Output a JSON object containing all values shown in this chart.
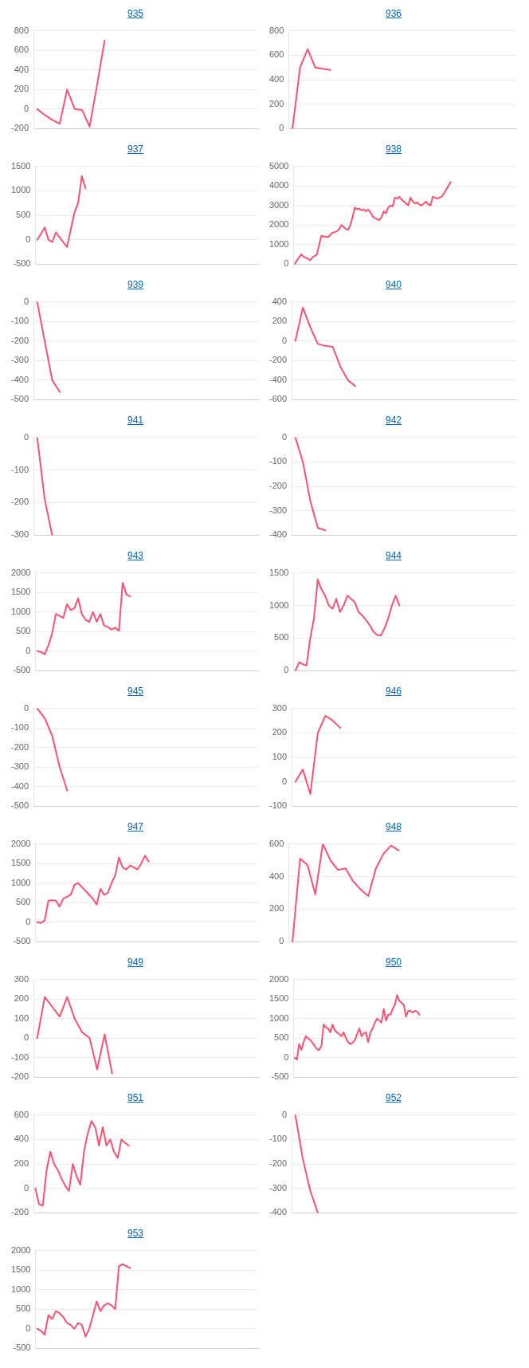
{
  "chart_data": [
    {
      "type": "line",
      "title": "935",
      "color": "#ff5271",
      "grid": "y",
      "marker": "none",
      "line_style": "solid",
      "tick_labels": "y",
      "ylim": [
        -200,
        800
      ],
      "yticks": [
        -200,
        0,
        200,
        400,
        600,
        800
      ],
      "categories": [
        null,
        null,
        null,
        null,
        null,
        null,
        null,
        null,
        null,
        null,
        null,
        null,
        null,
        null,
        null,
        null,
        null,
        null,
        null,
        null,
        null,
        null,
        null,
        null,
        null,
        null,
        null,
        null,
        null,
        null
      ],
      "values": [
        0,
        -60,
        -110,
        -150,
        200,
        0,
        -10,
        -180,
        250,
        700,
        null,
        null,
        null,
        null,
        null,
        null,
        null,
        null,
        null,
        null,
        null,
        null,
        null,
        null,
        null,
        null,
        null,
        null,
        null,
        null
      ]
    },
    {
      "type": "line",
      "title": "936",
      "color": "#ff5271",
      "grid": "y",
      "marker": "none",
      "line_style": "solid",
      "tick_labels": "y",
      "ylim": [
        0,
        800
      ],
      "yticks": [
        0,
        200,
        400,
        600,
        800
      ],
      "categories": [
        null,
        null,
        null,
        null,
        null,
        null,
        null,
        null,
        null,
        null,
        null,
        null,
        null,
        null,
        null,
        null,
        null,
        null,
        null,
        null,
        null,
        null,
        null,
        null,
        null,
        null,
        null,
        null,
        null,
        null
      ],
      "values": [
        0,
        500,
        650,
        500,
        490,
        480,
        null,
        null,
        null,
        null,
        null,
        null,
        null,
        null,
        null,
        null,
        null,
        null,
        null,
        null,
        null,
        null,
        null,
        null,
        null,
        null,
        null,
        null,
        null,
        null
      ]
    },
    {
      "type": "line",
      "title": "937",
      "color": "#ff5271",
      "grid": "y",
      "marker": "none",
      "line_style": "solid",
      "tick_labels": "y",
      "ylim": [
        -500,
        1500
      ],
      "yticks": [
        -500,
        0,
        500,
        1000,
        1500
      ],
      "categories": [
        null,
        null,
        null,
        null,
        null,
        null,
        null,
        null,
        null,
        null,
        null,
        null,
        null,
        null,
        null,
        null,
        null,
        null,
        null,
        null,
        null,
        null,
        null,
        null,
        null,
        null,
        null,
        null,
        null,
        null,
        null,
        null,
        null,
        null,
        null,
        null,
        null,
        null,
        null,
        null,
        null,
        null,
        null,
        null,
        null,
        null,
        null,
        null,
        null,
        null,
        null,
        null,
        null,
        null,
        null,
        null,
        null,
        null,
        null,
        null
      ],
      "values": [
        0,
        120,
        250,
        0,
        -50,
        150,
        50,
        -50,
        -150,
        200,
        550,
        750,
        1300,
        1050,
        null,
        null,
        null,
        null,
        null,
        null,
        null,
        null,
        null,
        null,
        null,
        null,
        null,
        null,
        null,
        null,
        null,
        null,
        null,
        null,
        null,
        null,
        null,
        null,
        null,
        null,
        null,
        null,
        null,
        null,
        null,
        null,
        null,
        null,
        null,
        null,
        null,
        null,
        null,
        null,
        null,
        null,
        null,
        null,
        null,
        null
      ]
    },
    {
      "type": "line",
      "title": "938",
      "color": "#ff5271",
      "grid": "y",
      "marker": "none",
      "line_style": "solid",
      "tick_labels": "y",
      "ylim": [
        0,
        5000
      ],
      "yticks": [
        0,
        1000,
        2000,
        3000,
        4000,
        5000
      ],
      "categories": [
        null,
        null,
        null,
        null,
        null,
        null,
        null,
        null,
        null,
        null,
        null,
        null,
        null,
        null,
        null,
        null,
        null,
        null,
        null,
        null,
        null,
        null,
        null,
        null,
        null,
        null,
        null,
        null,
        null,
        null,
        null,
        null,
        null,
        null,
        null,
        null,
        null,
        null,
        null,
        null,
        null,
        null,
        null,
        null,
        null,
        null,
        null,
        null,
        null,
        null,
        null,
        null,
        null,
        null,
        null,
        null,
        null,
        null,
        null,
        null,
        null,
        null,
        null,
        null,
        null,
        null,
        null,
        null,
        null,
        null,
        null,
        null,
        null,
        null,
        null,
        null,
        null,
        null,
        null,
        null,
        null,
        null,
        null,
        null,
        null,
        null,
        null,
        null,
        null,
        null,
        null,
        null,
        null,
        null,
        null,
        null,
        null,
        null,
        null,
        null
      ],
      "values": [
        0,
        200,
        350,
        500,
        380,
        330,
        280,
        200,
        350,
        420,
        500,
        1000,
        1450,
        1420,
        1400,
        1380,
        1500,
        1600,
        1650,
        1680,
        1800,
        2000,
        1900,
        1800,
        1750,
        2000,
        2400,
        2900,
        2800,
        2850,
        2750,
        2800,
        2700,
        2800,
        2650,
        2450,
        2350,
        2300,
        2250,
        2400,
        2700,
        2600,
        2900,
        3000,
        2950,
        3400,
        3350,
        3450,
        3300,
        3200,
        3100,
        3000,
        3400,
        3200,
        3100,
        3150,
        3050,
        3000,
        3100,
        3200,
        3050,
        3000,
        3450,
        3400,
        3350,
        3400,
        3450,
        3600,
        3800,
        4000,
        4200,
        null,
        null,
        null,
        null,
        null,
        null,
        null,
        null,
        null,
        null,
        null,
        null,
        null,
        null,
        null,
        null,
        null,
        null,
        null,
        null,
        null,
        null,
        null,
        null,
        null,
        null,
        null,
        null,
        null
      ]
    },
    {
      "type": "line",
      "title": "939",
      "color": "#ff5271",
      "grid": "y",
      "marker": "none",
      "line_style": "solid",
      "tick_labels": "y",
      "ylim": [
        -500,
        0
      ],
      "yticks": [
        -500,
        -400,
        -300,
        -200,
        -100,
        0
      ],
      "categories": [
        null,
        null,
        null,
        null,
        null,
        null,
        null,
        null,
        null,
        null,
        null,
        null,
        null,
        null,
        null,
        null,
        null,
        null,
        null,
        null,
        null,
        null,
        null,
        null,
        null,
        null,
        null,
        null,
        null,
        null
      ],
      "values": [
        0,
        -200,
        -400,
        -460,
        null,
        null,
        null,
        null,
        null,
        null,
        null,
        null,
        null,
        null,
        null,
        null,
        null,
        null,
        null,
        null,
        null,
        null,
        null,
        null,
        null,
        null,
        null,
        null,
        null,
        null
      ]
    },
    {
      "type": "line",
      "title": "940",
      "color": "#ff5271",
      "grid": "y",
      "marker": "none",
      "line_style": "solid",
      "tick_labels": "y",
      "ylim": [
        -600,
        400
      ],
      "yticks": [
        -600,
        -400,
        -200,
        0,
        200,
        400
      ],
      "categories": [
        null,
        null,
        null,
        null,
        null,
        null,
        null,
        null,
        null,
        null,
        null,
        null,
        null,
        null,
        null,
        null,
        null,
        null,
        null,
        null,
        null,
        null,
        null,
        null,
        null,
        null,
        null,
        null,
        null,
        null
      ],
      "values": [
        0,
        340,
        140,
        -30,
        -50,
        -60,
        -260,
        -400,
        -460,
        null,
        null,
        null,
        null,
        null,
        null,
        null,
        null,
        null,
        null,
        null,
        null,
        null,
        null,
        null,
        null,
        null,
        null,
        null,
        null,
        null
      ]
    },
    {
      "type": "line",
      "title": "941",
      "color": "#ff5271",
      "grid": "y",
      "marker": "none",
      "line_style": "solid",
      "tick_labels": "y",
      "ylim": [
        -300,
        0
      ],
      "yticks": [
        -300,
        -200,
        -100,
        0
      ],
      "categories": [
        null,
        null,
        null,
        null,
        null,
        null,
        null,
        null,
        null,
        null,
        null,
        null,
        null,
        null,
        null,
        null,
        null,
        null,
        null,
        null,
        null,
        null,
        null,
        null,
        null,
        null,
        null,
        null,
        null,
        null
      ],
      "values": [
        0,
        -190,
        -300,
        null,
        null,
        null,
        null,
        null,
        null,
        null,
        null,
        null,
        null,
        null,
        null,
        null,
        null,
        null,
        null,
        null,
        null,
        null,
        null,
        null,
        null,
        null,
        null,
        null,
        null,
        null
      ]
    },
    {
      "type": "line",
      "title": "942",
      "color": "#ff5271",
      "grid": "y",
      "marker": "none",
      "line_style": "solid",
      "tick_labels": "y",
      "ylim": [
        -400,
        0
      ],
      "yticks": [
        -400,
        -300,
        -200,
        -100,
        0
      ],
      "categories": [
        null,
        null,
        null,
        null,
        null,
        null,
        null,
        null,
        null,
        null,
        null,
        null,
        null,
        null,
        null,
        null,
        null,
        null,
        null,
        null,
        null,
        null,
        null,
        null,
        null,
        null,
        null,
        null,
        null,
        null
      ],
      "values": [
        0,
        -100,
        -260,
        -370,
        -380,
        null,
        null,
        null,
        null,
        null,
        null,
        null,
        null,
        null,
        null,
        null,
        null,
        null,
        null,
        null,
        null,
        null,
        null,
        null,
        null,
        null,
        null,
        null,
        null,
        null
      ]
    },
    {
      "type": "line",
      "title": "943",
      "color": "#ff5271",
      "grid": "y",
      "marker": "none",
      "line_style": "solid",
      "tick_labels": "y",
      "ylim": [
        -500,
        2000
      ],
      "yticks": [
        -500,
        0,
        500,
        1000,
        1500,
        2000
      ],
      "categories": [
        null,
        null,
        null,
        null,
        null,
        null,
        null,
        null,
        null,
        null,
        null,
        null,
        null,
        null,
        null,
        null,
        null,
        null,
        null,
        null,
        null,
        null,
        null,
        null,
        null,
        null,
        null,
        null,
        null,
        null,
        null,
        null,
        null,
        null,
        null,
        null,
        null,
        null,
        null,
        null,
        null,
        null,
        null,
        null,
        null,
        null,
        null,
        null,
        null,
        null,
        null,
        null,
        null,
        null,
        null,
        null,
        null,
        null,
        null,
        null
      ],
      "values": [
        0,
        -20,
        -80,
        150,
        450,
        950,
        900,
        850,
        1200,
        1050,
        1100,
        1350,
        950,
        800,
        750,
        1000,
        750,
        950,
        650,
        620,
        550,
        600,
        520,
        1750,
        1450,
        1400,
        null,
        null,
        null,
        null,
        null,
        null,
        null,
        null,
        null,
        null,
        null,
        null,
        null,
        null,
        null,
        null,
        null,
        null,
        null,
        null,
        null,
        null,
        null,
        null,
        null,
        null,
        null,
        null,
        null,
        null,
        null,
        null,
        null,
        null
      ]
    },
    {
      "type": "line",
      "title": "944",
      "color": "#ff5271",
      "grid": "y",
      "marker": "none",
      "line_style": "solid",
      "tick_labels": "y",
      "ylim": [
        0,
        1500
      ],
      "yticks": [
        0,
        500,
        1000,
        1500
      ],
      "categories": [
        null,
        null,
        null,
        null,
        null,
        null,
        null,
        null,
        null,
        null,
        null,
        null,
        null,
        null,
        null,
        null,
        null,
        null,
        null,
        null,
        null,
        null,
        null,
        null,
        null,
        null,
        null,
        null,
        null,
        null,
        null,
        null,
        null,
        null,
        null,
        null,
        null,
        null,
        null,
        null,
        null,
        null,
        null,
        null,
        null,
        null,
        null,
        null,
        null,
        null,
        null,
        null,
        null,
        null,
        null,
        null,
        null,
        null,
        null,
        null
      ],
      "values": [
        0,
        130,
        100,
        80,
        500,
        800,
        1400,
        1250,
        1150,
        1000,
        950,
        1100,
        900,
        1000,
        1150,
        1100,
        1050,
        900,
        850,
        780,
        700,
        600,
        550,
        540,
        650,
        800,
        1000,
        1150,
        1000,
        null,
        null,
        null,
        null,
        null,
        null,
        null,
        null,
        null,
        null,
        null,
        null,
        null,
        null,
        null,
        null,
        null,
        null,
        null,
        null,
        null,
        null,
        null,
        null,
        null,
        null,
        null,
        null,
        null,
        null,
        null
      ]
    },
    {
      "type": "line",
      "title": "945",
      "color": "#ff5271",
      "grid": "y",
      "marker": "none",
      "line_style": "solid",
      "tick_labels": "y",
      "ylim": [
        -500,
        0
      ],
      "yticks": [
        -500,
        -400,
        -300,
        -200,
        -100,
        0
      ],
      "categories": [
        null,
        null,
        null,
        null,
        null,
        null,
        null,
        null,
        null,
        null,
        null,
        null,
        null,
        null,
        null,
        null,
        null,
        null,
        null,
        null,
        null,
        null,
        null,
        null,
        null,
        null,
        null,
        null,
        null,
        null
      ],
      "values": [
        0,
        -50,
        -140,
        -300,
        -420,
        null,
        null,
        null,
        null,
        null,
        null,
        null,
        null,
        null,
        null,
        null,
        null,
        null,
        null,
        null,
        null,
        null,
        null,
        null,
        null,
        null,
        null,
        null,
        null,
        null
      ]
    },
    {
      "type": "line",
      "title": "946",
      "color": "#ff5271",
      "grid": "y",
      "marker": "none",
      "line_style": "solid",
      "tick_labels": "y",
      "ylim": [
        -100,
        300
      ],
      "yticks": [
        -100,
        0,
        100,
        200,
        300
      ],
      "categories": [
        null,
        null,
        null,
        null,
        null,
        null,
        null,
        null,
        null,
        null,
        null,
        null,
        null,
        null,
        null,
        null,
        null,
        null,
        null,
        null,
        null,
        null,
        null,
        null,
        null,
        null,
        null,
        null,
        null,
        null
      ],
      "values": [
        0,
        50,
        -50,
        200,
        270,
        250,
        220,
        null,
        null,
        null,
        null,
        null,
        null,
        null,
        null,
        null,
        null,
        null,
        null,
        null,
        null,
        null,
        null,
        null,
        null,
        null,
        null,
        null,
        null,
        null
      ]
    },
    {
      "type": "line",
      "title": "947",
      "color": "#ff5271",
      "grid": "y",
      "marker": "none",
      "line_style": "solid",
      "tick_labels": "y",
      "ylim": [
        -500,
        2000
      ],
      "yticks": [
        -500,
        0,
        500,
        1000,
        1500,
        2000
      ],
      "categories": [
        null,
        null,
        null,
        null,
        null,
        null,
        null,
        null,
        null,
        null,
        null,
        null,
        null,
        null,
        null,
        null,
        null,
        null,
        null,
        null,
        null,
        null,
        null,
        null,
        null,
        null,
        null,
        null,
        null,
        null,
        null,
        null,
        null,
        null,
        null,
        null,
        null,
        null,
        null,
        null,
        null,
        null,
        null,
        null,
        null,
        null,
        null,
        null,
        null,
        null,
        null,
        null,
        null,
        null,
        null,
        null,
        null,
        null,
        null,
        null
      ],
      "values": [
        0,
        -20,
        50,
        550,
        560,
        550,
        400,
        600,
        650,
        700,
        950,
        1000,
        900,
        800,
        700,
        600,
        450,
        850,
        700,
        750,
        1000,
        1200,
        1650,
        1400,
        1350,
        1450,
        1400,
        1350,
        1500,
        1700,
        1550,
        null,
        null,
        null,
        null,
        null,
        null,
        null,
        null,
        null,
        null,
        null,
        null,
        null,
        null,
        null,
        null,
        null,
        null,
        null,
        null,
        null,
        null,
        null,
        null,
        null,
        null,
        null,
        null,
        null
      ]
    },
    {
      "type": "line",
      "title": "948",
      "color": "#ff5271",
      "grid": "y",
      "marker": "none",
      "line_style": "solid",
      "tick_labels": "y",
      "ylim": [
        0,
        600
      ],
      "yticks": [
        0,
        200,
        400,
        600
      ],
      "categories": [
        null,
        null,
        null,
        null,
        null,
        null,
        null,
        null,
        null,
        null,
        null,
        null,
        null,
        null,
        null,
        null,
        null,
        null,
        null,
        null,
        null,
        null,
        null,
        null,
        null,
        null,
        null,
        null,
        null,
        null
      ],
      "values": [
        0,
        510,
        470,
        290,
        600,
        500,
        440,
        450,
        370,
        320,
        280,
        450,
        540,
        590,
        560,
        null,
        null,
        null,
        null,
        null,
        null,
        null,
        null,
        null,
        null,
        null,
        null,
        null,
        null,
        null
      ]
    },
    {
      "type": "line",
      "title": "949",
      "color": "#ff5271",
      "grid": "y",
      "marker": "none",
      "line_style": "solid",
      "tick_labels": "y",
      "ylim": [
        -200,
        300
      ],
      "yticks": [
        -200,
        -100,
        0,
        100,
        200,
        300
      ],
      "categories": [
        null,
        null,
        null,
        null,
        null,
        null,
        null,
        null,
        null,
        null,
        null,
        null,
        null,
        null,
        null,
        null,
        null,
        null,
        null,
        null,
        null,
        null,
        null,
        null,
        null,
        null,
        null,
        null,
        null,
        null
      ],
      "values": [
        0,
        210,
        160,
        110,
        210,
        100,
        30,
        0,
        -160,
        20,
        -180,
        null,
        null,
        null,
        null,
        null,
        null,
        null,
        null,
        null,
        null,
        null,
        null,
        null,
        null,
        null,
        null,
        null,
        null,
        null
      ]
    },
    {
      "type": "line",
      "title": "950",
      "color": "#ff5271",
      "grid": "y",
      "marker": "none",
      "line_style": "solid",
      "tick_labels": "y",
      "ylim": [
        -500,
        2000
      ],
      "yticks": [
        -500,
        0,
        500,
        1000,
        1500,
        2000
      ],
      "categories": [
        null,
        null,
        null,
        null,
        null,
        null,
        null,
        null,
        null,
        null,
        null,
        null,
        null,
        null,
        null,
        null,
        null,
        null,
        null,
        null,
        null,
        null,
        null,
        null,
        null,
        null,
        null,
        null,
        null,
        null,
        null,
        null,
        null,
        null,
        null,
        null,
        null,
        null,
        null,
        null,
        null,
        null,
        null,
        null,
        null,
        null,
        null,
        null,
        null,
        null,
        null,
        null,
        null,
        null,
        null,
        null,
        null,
        null,
        null,
        null,
        null,
        null,
        null,
        null,
        null,
        null,
        null,
        null,
        null,
        null,
        null,
        null,
        null,
        null,
        null,
        null,
        null,
        null,
        null,
        null,
        null,
        null,
        null,
        null,
        null,
        null,
        null,
        null,
        null,
        null,
        null,
        null,
        null,
        null,
        null,
        null,
        null,
        null,
        null,
        null
      ],
      "values": [
        0,
        -50,
        350,
        200,
        400,
        550,
        500,
        450,
        380,
        300,
        220,
        200,
        300,
        850,
        780,
        750,
        650,
        850,
        700,
        650,
        600,
        550,
        650,
        500,
        400,
        350,
        380,
        450,
        600,
        750,
        550,
        620,
        650,
        400,
        650,
        750,
        900,
        1000,
        950,
        900,
        1250,
        950,
        1100,
        1100,
        1250,
        1350,
        1600,
        1450,
        1400,
        1350,
        1050,
        1200,
        1200,
        1150,
        1200,
        1180,
        1100,
        null,
        null,
        null,
        null,
        null,
        null,
        null,
        null,
        null,
        null,
        null,
        null,
        null,
        null,
        null,
        null,
        null,
        null,
        null,
        null,
        null,
        null,
        null,
        null,
        null,
        null,
        null,
        null,
        null,
        null,
        null,
        null,
        null,
        null,
        null,
        null,
        null,
        null,
        null,
        null,
        null,
        null,
        null
      ]
    },
    {
      "type": "line",
      "title": "951",
      "color": "#ff5271",
      "grid": "y",
      "marker": "none",
      "line_style": "solid",
      "tick_labels": "y",
      "ylim": [
        -200,
        600
      ],
      "yticks": [
        -200,
        0,
        200,
        400,
        600
      ],
      "categories": [
        null,
        null,
        null,
        null,
        null,
        null,
        null,
        null,
        null,
        null,
        null,
        null,
        null,
        null,
        null,
        null,
        null,
        null,
        null,
        null,
        null,
        null,
        null,
        null,
        null,
        null,
        null,
        null,
        null,
        null,
        null,
        null,
        null,
        null,
        null,
        null,
        null,
        null,
        null,
        null,
        null,
        null,
        null,
        null,
        null,
        null,
        null,
        null,
        null,
        null,
        null,
        null,
        null,
        null,
        null,
        null,
        null,
        null,
        null,
        null
      ],
      "values": [
        0,
        -130,
        -140,
        150,
        300,
        200,
        150,
        80,
        20,
        -20,
        200,
        100,
        30,
        300,
        450,
        550,
        500,
        350,
        500,
        350,
        400,
        300,
        250,
        400,
        370,
        350,
        null,
        null,
        null,
        null,
        null,
        null,
        null,
        null,
        null,
        null,
        null,
        null,
        null,
        null,
        null,
        null,
        null,
        null,
        null,
        null,
        null,
        null,
        null,
        null,
        null,
        null,
        null,
        null,
        null,
        null,
        null,
        null,
        null,
        null
      ]
    },
    {
      "type": "line",
      "title": "952",
      "color": "#ff5271",
      "grid": "y",
      "marker": "none",
      "line_style": "solid",
      "tick_labels": "y",
      "ylim": [
        -400,
        0
      ],
      "yticks": [
        -400,
        -300,
        -200,
        -100,
        0
      ],
      "categories": [
        null,
        null,
        null,
        null,
        null,
        null,
        null,
        null,
        null,
        null,
        null,
        null,
        null,
        null,
        null,
        null,
        null,
        null,
        null,
        null,
        null,
        null,
        null,
        null,
        null,
        null,
        null,
        null,
        null,
        null
      ],
      "values": [
        0,
        -180,
        -310,
        -400,
        null,
        null,
        null,
        null,
        null,
        null,
        null,
        null,
        null,
        null,
        null,
        null,
        null,
        null,
        null,
        null,
        null,
        null,
        null,
        null,
        null,
        null,
        null,
        null,
        null,
        null
      ]
    },
    {
      "type": "line",
      "title": "953",
      "color": "#ff5271",
      "grid": "y",
      "marker": "none",
      "line_style": "solid",
      "tick_labels": "y",
      "ylim": [
        -500,
        2000
      ],
      "yticks": [
        -500,
        0,
        500,
        1000,
        1500,
        2000
      ],
      "categories": [
        null,
        null,
        null,
        null,
        null,
        null,
        null,
        null,
        null,
        null,
        null,
        null,
        null,
        null,
        null,
        null,
        null,
        null,
        null,
        null,
        null,
        null,
        null,
        null,
        null,
        null,
        null,
        null,
        null,
        null,
        null,
        null,
        null,
        null,
        null,
        null,
        null,
        null,
        null,
        null,
        null,
        null,
        null,
        null,
        null,
        null,
        null,
        null,
        null,
        null,
        null,
        null,
        null,
        null,
        null,
        null,
        null,
        null,
        null,
        null
      ],
      "values": [
        0,
        -50,
        -150,
        350,
        250,
        450,
        400,
        300,
        150,
        100,
        0,
        150,
        100,
        -200,
        0,
        350,
        700,
        450,
        600,
        650,
        600,
        500,
        1600,
        1650,
        1600,
        1550,
        null,
        null,
        null,
        null,
        null,
        null,
        null,
        null,
        null,
        null,
        null,
        null,
        null,
        null,
        null,
        null,
        null,
        null,
        null,
        null,
        null,
        null,
        null,
        null,
        null,
        null,
        null,
        null,
        null,
        null,
        null,
        null,
        null,
        null
      ]
    }
  ]
}
